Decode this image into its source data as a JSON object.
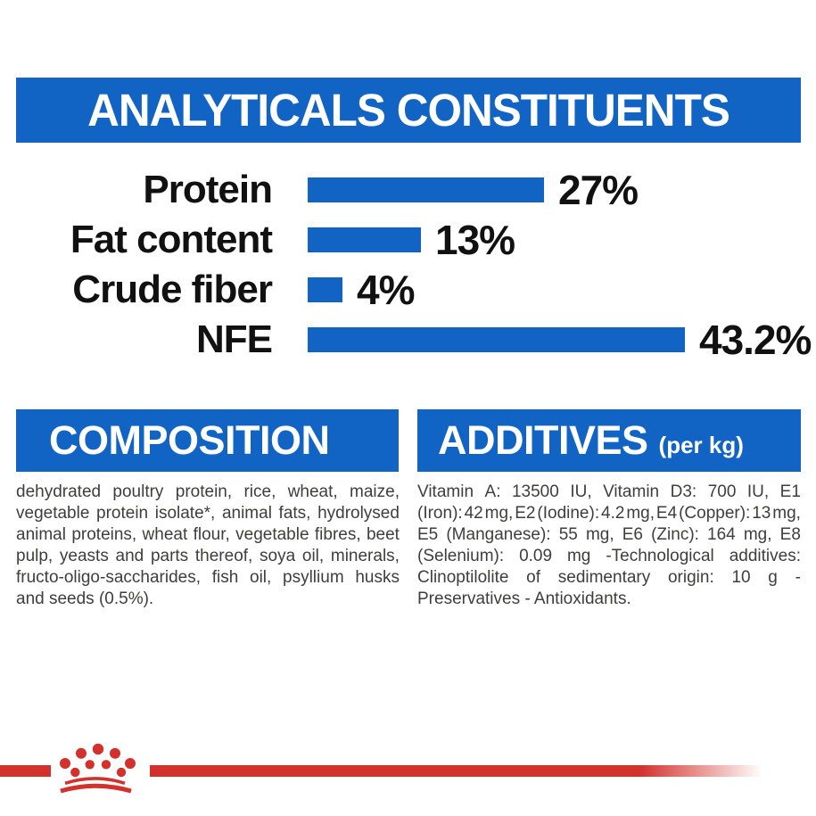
{
  "header": {
    "title": "ANALYTICALS CONSTITUENTS"
  },
  "chart_data": {
    "type": "bar",
    "orientation": "horizontal",
    "title": "ANALYTICALS CONSTITUENTS",
    "categories": [
      "Protein",
      "Fat content",
      "Crude fiber",
      "NFE"
    ],
    "values": [
      27,
      13,
      4,
      43.2
    ],
    "value_labels": [
      "27%",
      "13%",
      "4%",
      "43.2%"
    ],
    "xlabel": "",
    "ylabel": "",
    "xlim": [
      0,
      45
    ],
    "grid": false,
    "legend": false,
    "bar_color": "#1264C4"
  },
  "composition": {
    "title": "COMPOSITION",
    "lines": [
      "dehydrated poultry protein, rice, wheat, maize,",
      "vegetable protein isolate*, animal fats, hydrolysed",
      "animal proteins, wheat flour, vegetable fibres, beet",
      "pulp, yeasts and parts thereof, soya oil, minerals,",
      "fructo-oligo-saccharides, fish oil, psyllium husks",
      "and seeds (0.5%)."
    ]
  },
  "additives": {
    "title": "ADDITIVES",
    "unit_label": "(per kg)",
    "lines": [
      "Vitamin A: 13500 IU, Vitamin D3: 700 IU, E1",
      "(Iron): 42 mg, E2 (Iodine): 4.2 mg, E4 (Copper): 13 mg,",
      "E5 (Manganese): 55 mg, E6 (Zinc): 164 mg, E8",
      "(Selenium): 0.09 mg -Technological additives:",
      "Clinoptilolite of sedimentary origin: 10 g -",
      "Preservatives - Antioxidants."
    ]
  },
  "footer": {
    "logo": "royal-canin-crown-logo"
  },
  "colors": {
    "banner_blue": "#1264C4",
    "bar_blue": "#1264C4",
    "brand_red": "#D3312C",
    "body_text": "#3E3E3D",
    "chart_text": "#111111"
  }
}
